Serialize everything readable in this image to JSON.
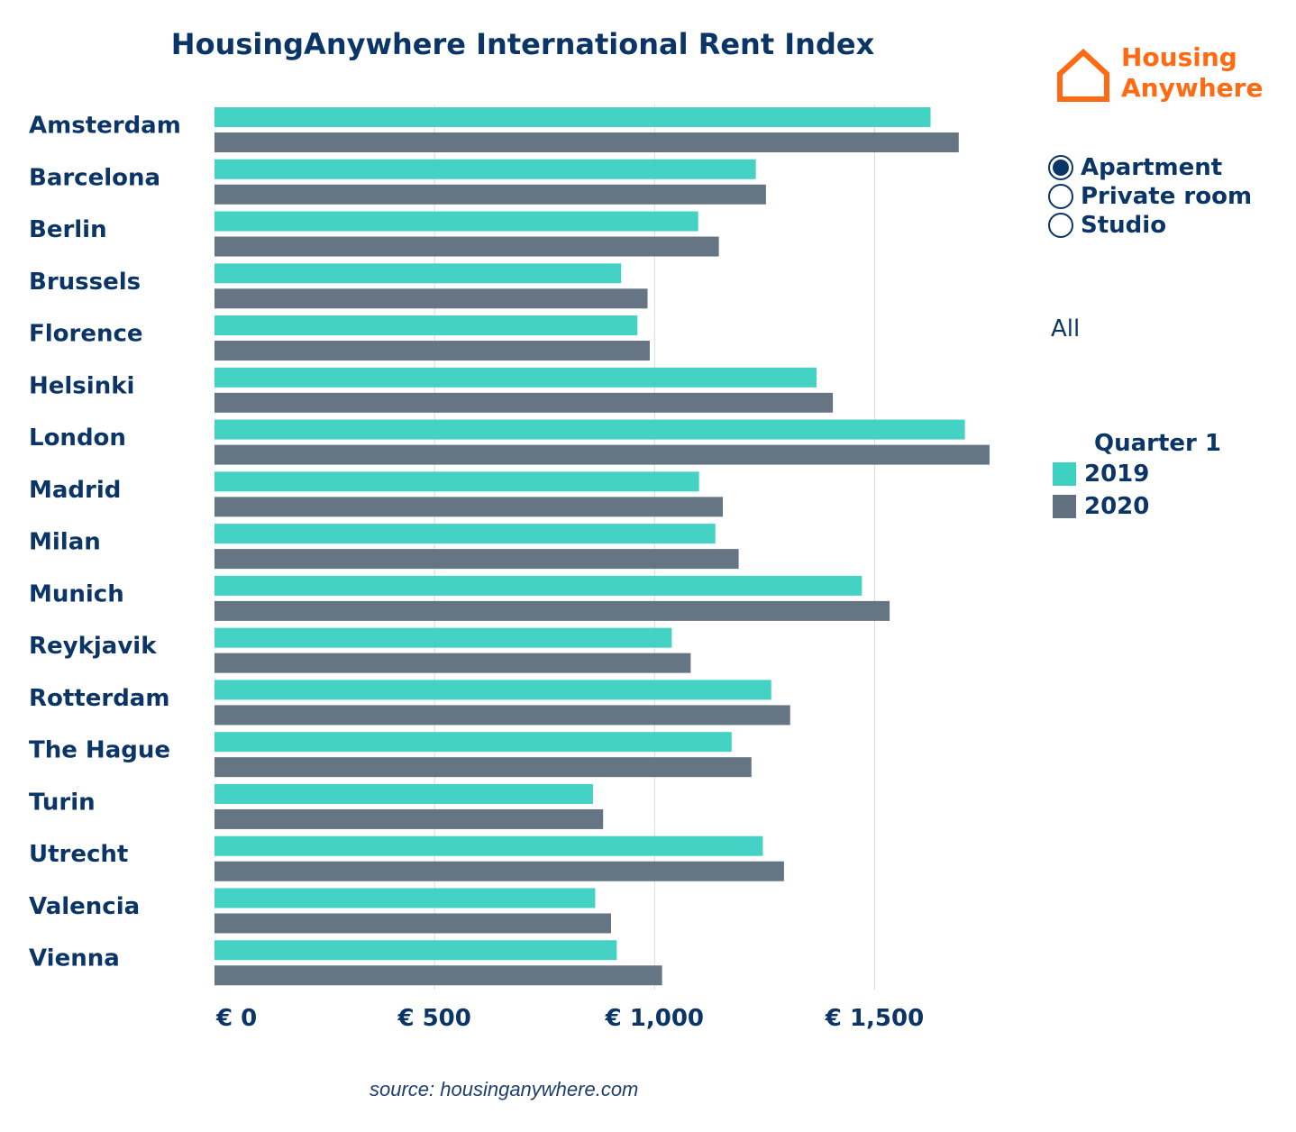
{
  "colors": {
    "series_2019": "#3dd1c1",
    "series_2020": "#61717f",
    "text": "#0b3566",
    "accent": "#ff6a13"
  },
  "logo": {
    "line1": "Housing",
    "line2": "Anywhere",
    "icon": "house-icon"
  },
  "room_type": {
    "options": [
      {
        "label": "Apartment",
        "selected": true
      },
      {
        "label": "Private room",
        "selected": false
      },
      {
        "label": "Studio",
        "selected": false
      }
    ]
  },
  "filter": {
    "value": "All"
  },
  "legend": {
    "title": "Quarter 1",
    "items": [
      {
        "label": "2019"
      },
      {
        "label": "2020"
      }
    ]
  },
  "source": "source: housinganywhere.com",
  "chart_data": {
    "type": "bar",
    "orientation": "horizontal",
    "title": "HousingAnywhere International Rent Index",
    "categories": [
      "Amsterdam",
      "Barcelona",
      "Berlin",
      "Brussels",
      "Florence",
      "Helsinki",
      "London",
      "Madrid",
      "Milan",
      "Munich",
      "Reykjavik",
      "Rotterdam",
      "The Hague",
      "Turin",
      "Utrecht",
      "Valencia",
      "Vienna"
    ],
    "series": [
      {
        "name": "2019",
        "values": [
          1627,
          1230,
          1099,
          924,
          961,
          1368,
          1705,
          1101,
          1138,
          1471,
          1039,
          1265,
          1175,
          860,
          1246,
          865,
          914
        ]
      },
      {
        "name": "2020",
        "values": [
          1691,
          1253,
          1146,
          984,
          989,
          1405,
          1761,
          1155,
          1191,
          1534,
          1082,
          1308,
          1220,
          883,
          1294,
          901,
          1017
        ]
      }
    ],
    "xlim": [
      0,
      1800
    ],
    "xticks": [
      0,
      500,
      1000,
      1500
    ],
    "xtick_labels": [
      "€ 0",
      "€ 500",
      "€ 1,000",
      "€ 1,500"
    ],
    "grid": true,
    "xlabel": "",
    "ylabel": ""
  }
}
